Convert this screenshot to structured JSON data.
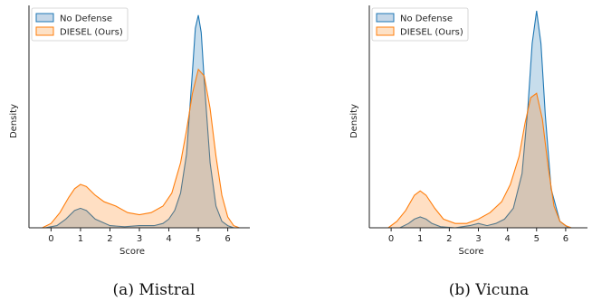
{
  "chart_data": [
    {
      "type": "area",
      "caption": "(a) Mistral",
      "xlabel": "Score",
      "ylabel": "Density",
      "xticks": [
        0,
        1,
        2,
        3,
        4,
        5,
        6
      ],
      "xlim": [
        -0.75,
        6.75
      ],
      "ylim": [
        0,
        1
      ],
      "legend_position": "top-left",
      "series": [
        {
          "name": "No Defense",
          "color": "#1f77b4",
          "x": [
            -0.2,
            0.2,
            0.5,
            0.8,
            1.0,
            1.2,
            1.5,
            2.0,
            2.5,
            3.0,
            3.5,
            3.8,
            4.0,
            4.2,
            4.4,
            4.6,
            4.8,
            4.9,
            5.0,
            5.1,
            5.2,
            5.4,
            5.6,
            5.8,
            6.0,
            6.2
          ],
          "y": [
            0.0,
            0.01,
            0.04,
            0.08,
            0.09,
            0.08,
            0.04,
            0.01,
            0.005,
            0.01,
            0.01,
            0.02,
            0.04,
            0.08,
            0.16,
            0.34,
            0.72,
            0.92,
            0.98,
            0.9,
            0.68,
            0.3,
            0.1,
            0.03,
            0.01,
            0.0
          ]
        },
        {
          "name": "DIESEL (Ours)",
          "color": "#ff7f0e",
          "x": [
            -0.3,
            0.0,
            0.3,
            0.6,
            0.8,
            1.0,
            1.2,
            1.5,
            1.8,
            2.2,
            2.6,
            3.0,
            3.4,
            3.8,
            4.1,
            4.4,
            4.6,
            4.8,
            5.0,
            5.2,
            5.4,
            5.6,
            5.8,
            6.0,
            6.2,
            6.4
          ],
          "y": [
            0.0,
            0.02,
            0.07,
            0.14,
            0.18,
            0.2,
            0.19,
            0.15,
            0.12,
            0.1,
            0.07,
            0.06,
            0.07,
            0.1,
            0.16,
            0.3,
            0.45,
            0.62,
            0.73,
            0.7,
            0.55,
            0.33,
            0.15,
            0.05,
            0.01,
            0.0
          ]
        }
      ]
    },
    {
      "type": "area",
      "caption": "(b) Vicuna",
      "xlabel": "Score",
      "ylabel": "Density",
      "xticks": [
        0,
        1,
        2,
        3,
        4,
        5,
        6
      ],
      "xlim": [
        -0.75,
        6.75
      ],
      "ylim": [
        0,
        1
      ],
      "legend_position": "top-left",
      "series": [
        {
          "name": "No Defense",
          "color": "#1f77b4",
          "x": [
            0.3,
            0.6,
            0.8,
            1.0,
            1.2,
            1.4,
            1.7,
            2.2,
            2.7,
            3.0,
            3.3,
            3.6,
            3.9,
            4.2,
            4.5,
            4.7,
            4.85,
            5.0,
            5.15,
            5.3,
            5.5,
            5.8,
            6.1
          ],
          "y": [
            0.0,
            0.02,
            0.04,
            0.05,
            0.04,
            0.02,
            0.005,
            0.0,
            0.01,
            0.02,
            0.01,
            0.02,
            0.04,
            0.09,
            0.25,
            0.55,
            0.85,
            1.0,
            0.85,
            0.52,
            0.18,
            0.03,
            0.0
          ]
        },
        {
          "name": "DIESEL (Ours)",
          "color": "#ff7f0e",
          "x": [
            -0.1,
            0.2,
            0.5,
            0.8,
            1.0,
            1.2,
            1.5,
            1.8,
            2.2,
            2.6,
            3.0,
            3.4,
            3.8,
            4.1,
            4.4,
            4.6,
            4.8,
            5.0,
            5.2,
            5.4,
            5.6,
            5.8,
            6.0,
            6.2
          ],
          "y": [
            0.0,
            0.03,
            0.08,
            0.15,
            0.17,
            0.15,
            0.09,
            0.04,
            0.02,
            0.02,
            0.04,
            0.07,
            0.12,
            0.2,
            0.33,
            0.48,
            0.6,
            0.62,
            0.5,
            0.28,
            0.1,
            0.03,
            0.01,
            0.0
          ]
        }
      ]
    }
  ]
}
